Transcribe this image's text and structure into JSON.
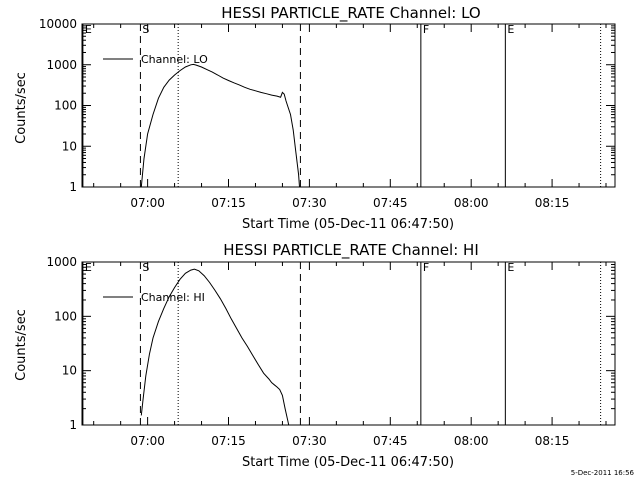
{
  "footer_timestamp": "5-Dec-2011 16:56",
  "chart_data": [
    {
      "type": "line",
      "title": "HESSI PARTICLE_RATE Channel: LO",
      "xlabel": "Start Time (05-Dec-11 06:47:50)",
      "ylabel": "Counts/sec",
      "yscale": "log",
      "xlim": [
        "06:47:50",
        "08:26:40"
      ],
      "ylim": [
        1,
        10000
      ],
      "x_ticks": [
        "07:00",
        "07:15",
        "07:30",
        "07:45",
        "08:00",
        "08:15"
      ],
      "y_ticks": [
        "1",
        "10",
        "100",
        "1000",
        "10000"
      ],
      "legend": {
        "position": "top-left",
        "label": "Channel: LO"
      },
      "markers": [
        {
          "label": "E",
          "time": "06:48:00",
          "style": "solid"
        },
        {
          "label": "S",
          "time": "06:58:40",
          "style": "dashed"
        },
        {
          "label": "",
          "time": "07:05:40",
          "style": "dotted"
        },
        {
          "label": "",
          "time": "07:28:20",
          "style": "dashed"
        },
        {
          "label": "F",
          "time": "07:50:40",
          "style": "solid"
        },
        {
          "label": "E",
          "time": "08:06:20",
          "style": "solid"
        },
        {
          "label": "",
          "time": "08:24:00",
          "style": "dotted"
        }
      ],
      "series": [
        {
          "name": "Channel: LO",
          "points": [
            [
              "06:58:50",
              1
            ],
            [
              "06:59:20",
              5
            ],
            [
              "07:00:00",
              20
            ],
            [
              "07:01:00",
              60
            ],
            [
              "07:02:00",
              150
            ],
            [
              "07:03:00",
              280
            ],
            [
              "07:04:00",
              420
            ],
            [
              "07:05:00",
              560
            ],
            [
              "07:06:00",
              720
            ],
            [
              "07:07:00",
              880
            ],
            [
              "07:08:00",
              1000
            ],
            [
              "07:08:30",
              1020
            ],
            [
              "07:09:00",
              980
            ],
            [
              "07:10:00",
              880
            ],
            [
              "07:11:00",
              760
            ],
            [
              "07:12:00",
              660
            ],
            [
              "07:13:00",
              560
            ],
            [
              "07:14:00",
              470
            ],
            [
              "07:15:00",
              410
            ],
            [
              "07:16:00",
              360
            ],
            [
              "07:17:00",
              320
            ],
            [
              "07:18:00",
              280
            ],
            [
              "07:19:00",
              250
            ],
            [
              "07:20:00",
              230
            ],
            [
              "07:21:00",
              210
            ],
            [
              "07:22:00",
              195
            ],
            [
              "07:23:00",
              180
            ],
            [
              "07:24:00",
              170
            ],
            [
              "07:24:40",
              160
            ],
            [
              "07:25:00",
              210
            ],
            [
              "07:25:20",
              190
            ],
            [
              "07:25:40",
              130
            ],
            [
              "07:26:00",
              95
            ],
            [
              "07:26:30",
              60
            ],
            [
              "07:27:00",
              25
            ],
            [
              "07:27:30",
              7
            ],
            [
              "07:28:00",
              2
            ],
            [
              "07:28:10",
              1
            ]
          ]
        }
      ]
    },
    {
      "type": "line",
      "title": "HESSI PARTICLE_RATE Channel: HI",
      "xlabel": "Start Time (05-Dec-11 06:47:50)",
      "ylabel": "Counts/sec",
      "yscale": "log",
      "xlim": [
        "06:47:50",
        "08:26:40"
      ],
      "ylim": [
        1,
        1000
      ],
      "x_ticks": [
        "07:00",
        "07:15",
        "07:30",
        "07:45",
        "08:00",
        "08:15"
      ],
      "y_ticks": [
        "1",
        "10",
        "100",
        "1000"
      ],
      "legend": {
        "position": "top-left",
        "label": "Channel: HI"
      },
      "markers": [
        {
          "label": "E",
          "time": "06:48:00",
          "style": "solid"
        },
        {
          "label": "S",
          "time": "06:58:40",
          "style": "dashed"
        },
        {
          "label": "",
          "time": "07:05:40",
          "style": "dotted"
        },
        {
          "label": "",
          "time": "07:28:20",
          "style": "dashed"
        },
        {
          "label": "F",
          "time": "07:50:40",
          "style": "solid"
        },
        {
          "label": "E",
          "time": "08:06:20",
          "style": "solid"
        },
        {
          "label": "",
          "time": "08:24:00",
          "style": "dotted"
        }
      ],
      "series": [
        {
          "name": "Channel: HI",
          "points": [
            [
              "06:58:50",
              1.5
            ],
            [
              "06:59:10",
              3
            ],
            [
              "06:59:40",
              8
            ],
            [
              "07:00:20",
              20
            ],
            [
              "07:01:00",
              40
            ],
            [
              "07:02:00",
              80
            ],
            [
              "07:03:00",
              140
            ],
            [
              "07:04:00",
              230
            ],
            [
              "07:05:00",
              340
            ],
            [
              "07:06:00",
              480
            ],
            [
              "07:07:00",
              620
            ],
            [
              "07:08:00",
              710
            ],
            [
              "07:08:40",
              740
            ],
            [
              "07:09:30",
              690
            ],
            [
              "07:10:30",
              560
            ],
            [
              "07:11:30",
              420
            ],
            [
              "07:12:30",
              300
            ],
            [
              "07:13:30",
              210
            ],
            [
              "07:14:30",
              140
            ],
            [
              "07:15:30",
              90
            ],
            [
              "07:16:30",
              60
            ],
            [
              "07:17:30",
              40
            ],
            [
              "07:18:30",
              28
            ],
            [
              "07:19:30",
              19
            ],
            [
              "07:20:30",
              13
            ],
            [
              "07:21:30",
              9
            ],
            [
              "07:22:30",
              7
            ],
            [
              "07:23:00",
              6
            ],
            [
              "07:23:30",
              5.5
            ],
            [
              "07:24:00",
              5
            ],
            [
              "07:24:30",
              4.5
            ],
            [
              "07:25:00",
              3.5
            ],
            [
              "07:25:30",
              2
            ],
            [
              "07:26:00",
              1.2
            ],
            [
              "07:26:10",
              1
            ]
          ]
        }
      ]
    }
  ]
}
